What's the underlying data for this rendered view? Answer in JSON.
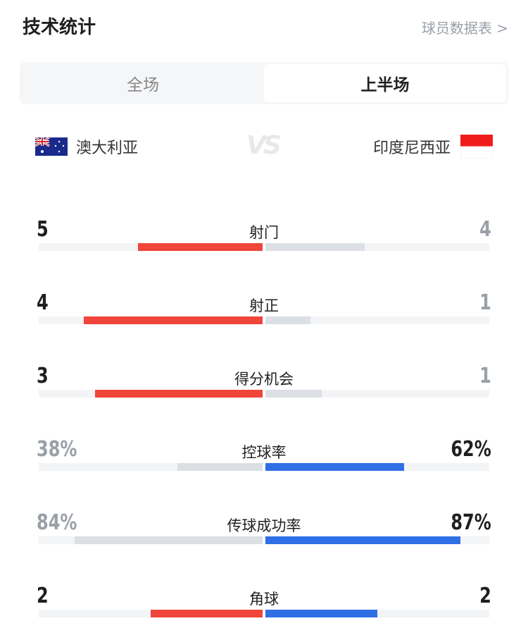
{
  "header": {
    "title": "技术统计",
    "player_stats_link": "球员数据表 >"
  },
  "tabs": [
    {
      "label": "全场",
      "active": false
    },
    {
      "label": "上半场",
      "active": true
    }
  ],
  "teams": {
    "home": {
      "name": "澳大利亚",
      "flag": "australia-flag"
    },
    "vs": "VS",
    "away": {
      "name": "印度尼西亚",
      "flag": "indonesia-flag"
    }
  },
  "colors": {
    "home": "#f0453b",
    "away": "#2f6fe6",
    "loser": "#dcdfe4",
    "muted_text": "#9aa0a8",
    "text": "#1f1f1f"
  },
  "stats": [
    {
      "label": "射门",
      "home": "5",
      "away": "4",
      "home_value": 5,
      "away_value": 4
    },
    {
      "label": "射正",
      "home": "4",
      "away": "1",
      "home_value": 4,
      "away_value": 1
    },
    {
      "label": "得分机会",
      "home": "3",
      "away": "1",
      "home_value": 3,
      "away_value": 1
    },
    {
      "label": "控球率",
      "home": "38%",
      "away": "62%",
      "home_value": 38,
      "away_value": 62,
      "percent": true
    },
    {
      "label": "传球成功率",
      "home": "84%",
      "away": "87%",
      "home_value": 84,
      "away_value": 87,
      "percent": true
    },
    {
      "label": "角球",
      "home": "2",
      "away": "2",
      "home_value": 2,
      "away_value": 2
    }
  ]
}
